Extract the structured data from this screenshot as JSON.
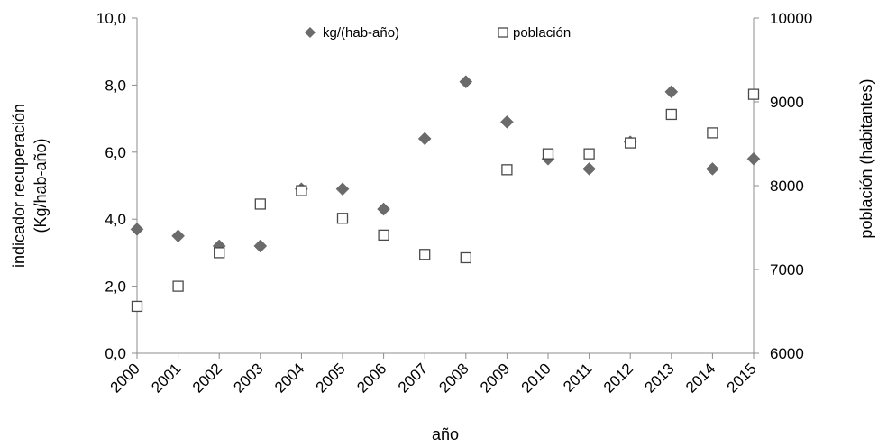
{
  "chart_data": {
    "type": "scatter",
    "x": [
      "2000",
      "2001",
      "2002",
      "2003",
      "2004",
      "2005",
      "2006",
      "2007",
      "2008",
      "2009",
      "2010",
      "2011",
      "2012",
      "2013",
      "2014",
      "2015"
    ],
    "series": [
      {
        "name": "kg/(hab-año)",
        "axis": "left",
        "marker": "diamond",
        "color": "#6b6b6b",
        "values": [
          3.7,
          3.5,
          3.2,
          3.2,
          4.9,
          4.9,
          4.3,
          6.4,
          8.1,
          6.9,
          5.8,
          5.5,
          6.3,
          7.8,
          5.5,
          5.8
        ]
      },
      {
        "name": "población",
        "axis": "right",
        "marker": "square-open",
        "color": "#4a4a4a",
        "values": [
          6560,
          6800,
          7200,
          7780,
          7940,
          7610,
          7410,
          7180,
          7140,
          8190,
          8380,
          8380,
          8510,
          8850,
          8630,
          9090
        ]
      }
    ],
    "xlabel": "año",
    "ylabel_left": [
      "indicador recuperación",
      "(Kg/hab-año)"
    ],
    "ylabel_right": "población  (habitantes)",
    "ylim_left": [
      0,
      10
    ],
    "yticks_left": [
      "0,0",
      "2,0",
      "4,0",
      "6,0",
      "8,0",
      "10,0"
    ],
    "ylim_right": [
      6000,
      10000
    ],
    "yticks_right": [
      "6000",
      "7000",
      "8000",
      "9000",
      "10000"
    ],
    "grid": false,
    "legend_position": "top-center"
  }
}
